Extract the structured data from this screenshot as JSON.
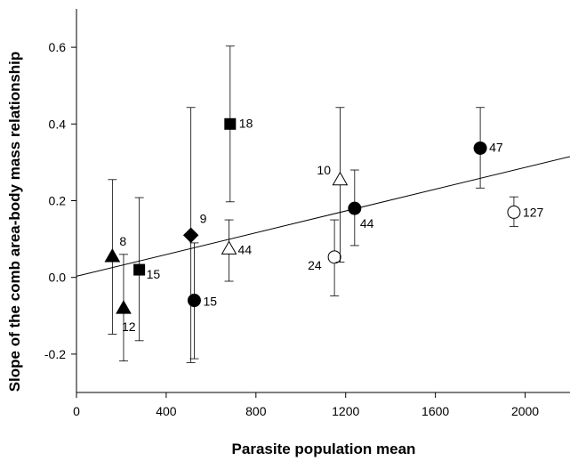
{
  "chart_data": {
    "type": "scatter",
    "title": "",
    "xlabel": "Parasite population mean",
    "ylabel": "Slope of the comb area-body mass relationship",
    "xlim": [
      0,
      2200
    ],
    "ylim": [
      -0.3,
      0.7
    ],
    "xticks": [
      0,
      400,
      800,
      1200,
      1600,
      2000
    ],
    "yticks": [
      -0.2,
      0.0,
      0.2,
      0.4,
      0.6
    ],
    "ytick_labels": [
      "-0.2",
      "0.0",
      "0.2",
      "0.4",
      "0.6"
    ],
    "grid": false,
    "regression_line": {
      "x": [
        0,
        2200
      ],
      "y": [
        0.003,
        0.315
      ]
    },
    "points": [
      {
        "x": 160,
        "y": 0.055,
        "err_low": -0.148,
        "err_high": 0.255,
        "marker": "triangle-filled",
        "label": "8"
      },
      {
        "x": 210,
        "y": -0.08,
        "err_low": -0.218,
        "err_high": 0.06,
        "marker": "triangle-filled",
        "label": "12"
      },
      {
        "x": 280,
        "y": 0.02,
        "err_low": -0.165,
        "err_high": 0.208,
        "marker": "square-filled",
        "label": "15"
      },
      {
        "x": 510,
        "y": 0.11,
        "err_low": -0.222,
        "err_high": 0.443,
        "marker": "diamond-filled",
        "label": "9"
      },
      {
        "x": 525,
        "y": -0.06,
        "err_low": -0.212,
        "err_high": 0.09,
        "marker": "circle-filled",
        "label": "15"
      },
      {
        "x": 680,
        "y": 0.075,
        "err_low": -0.01,
        "err_high": 0.15,
        "marker": "triangle-open",
        "label": "44"
      },
      {
        "x": 685,
        "y": 0.4,
        "err_low": 0.197,
        "err_high": 0.603,
        "marker": "square-filled",
        "label": "18"
      },
      {
        "x": 1150,
        "y": 0.053,
        "err_low": -0.048,
        "err_high": 0.15,
        "marker": "circle-open",
        "label": "24"
      },
      {
        "x": 1175,
        "y": 0.255,
        "err_low": 0.04,
        "err_high": 0.443,
        "marker": "triangle-open",
        "label": "10"
      },
      {
        "x": 1240,
        "y": 0.18,
        "err_low": 0.083,
        "err_high": 0.28,
        "marker": "circle-filled",
        "label": "44"
      },
      {
        "x": 1800,
        "y": 0.337,
        "err_low": 0.233,
        "err_high": 0.443,
        "marker": "circle-filled",
        "label": "47"
      },
      {
        "x": 1950,
        "y": 0.17,
        "err_low": 0.133,
        "err_high": 0.21,
        "marker": "circle-open",
        "label": "127"
      }
    ]
  }
}
